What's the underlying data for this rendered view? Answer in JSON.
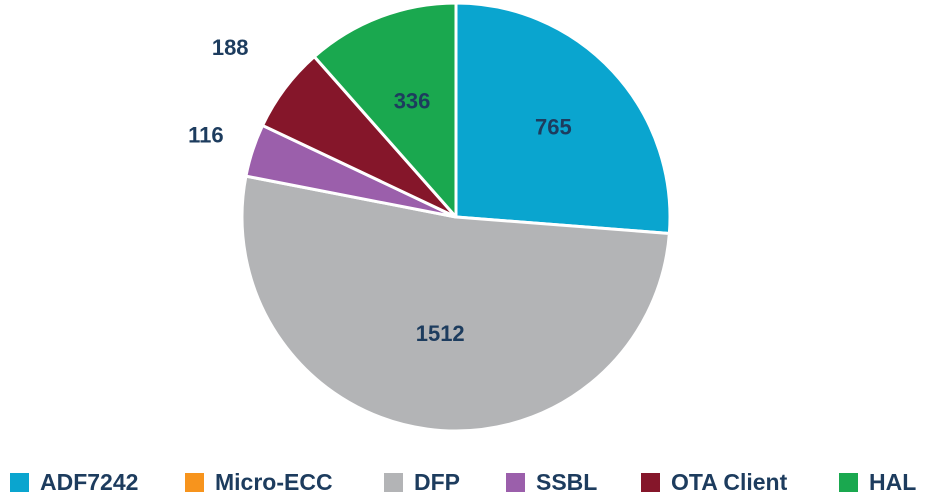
{
  "chart_data": {
    "type": "pie",
    "title": "",
    "categories": [
      "ADF7242",
      "Micro-ECC",
      "DFP",
      "SSBL",
      "OTA Client",
      "HAL"
    ],
    "values": [
      765,
      0,
      1512,
      116,
      188,
      336
    ],
    "data_labels": [
      "765",
      "",
      "1512",
      "116",
      "188",
      "336"
    ],
    "colors": [
      "#0aa5cf",
      "#f7941d",
      "#b3b4b6",
      "#9b5fab",
      "#85162a",
      "#1aa84f"
    ],
    "start_angle_deg": 0,
    "direction": "clockwise",
    "legend_position": "bottom",
    "label_color": "#1d3c5e",
    "slice_border_color": "#ffffff"
  }
}
